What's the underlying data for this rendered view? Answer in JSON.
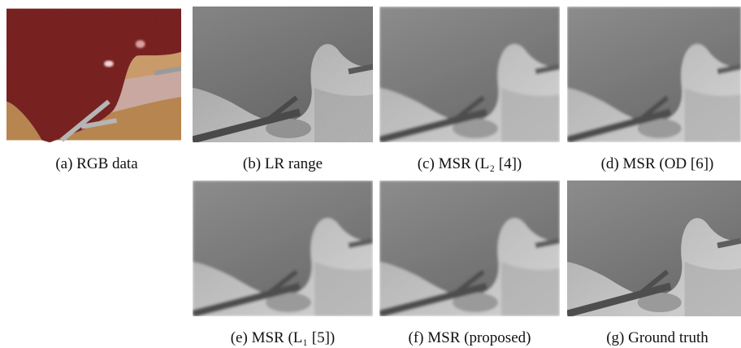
{
  "figure": {
    "panels": [
      {
        "caption": "(a) RGB data"
      },
      {
        "caption": "(b) LR range"
      },
      {
        "caption": "(c) MSR (L₂ [4])"
      },
      {
        "caption": "(d) MSR (OD [6])"
      },
      {
        "caption": "(e) MSR (L₁ [5])"
      },
      {
        "caption": "(f) MSR (proposed)"
      },
      {
        "caption": "(g) Ground truth"
      }
    ]
  }
}
